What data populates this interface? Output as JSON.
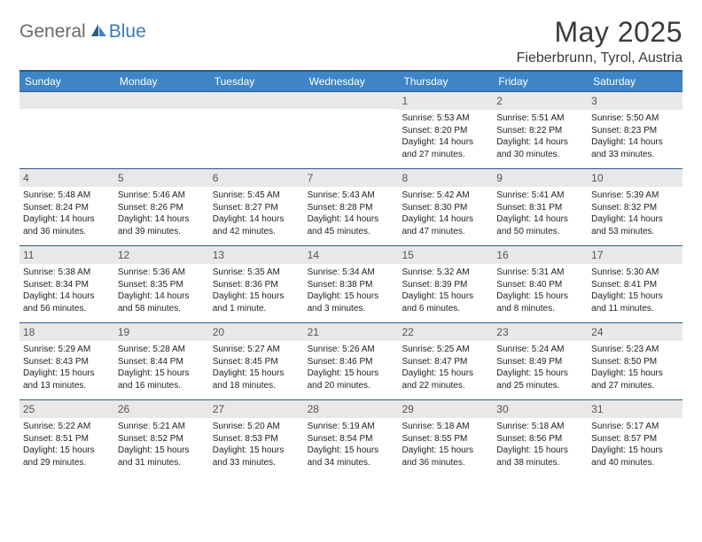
{
  "logo": {
    "textA": "General",
    "textB": "Blue"
  },
  "title": "May 2025",
  "location": "Fieberbrunn, Tyrol, Austria",
  "headerColor": "#3d85c6",
  "dow": [
    "Sunday",
    "Monday",
    "Tuesday",
    "Wednesday",
    "Thursday",
    "Friday",
    "Saturday"
  ],
  "weeks": [
    [
      null,
      null,
      null,
      null,
      {
        "n": "1",
        "sr": "Sunrise: 5:53 AM",
        "ss": "Sunset: 8:20 PM",
        "dl": "Daylight: 14 hours and 27 minutes."
      },
      {
        "n": "2",
        "sr": "Sunrise: 5:51 AM",
        "ss": "Sunset: 8:22 PM",
        "dl": "Daylight: 14 hours and 30 minutes."
      },
      {
        "n": "3",
        "sr": "Sunrise: 5:50 AM",
        "ss": "Sunset: 8:23 PM",
        "dl": "Daylight: 14 hours and 33 minutes."
      }
    ],
    [
      {
        "n": "4",
        "sr": "Sunrise: 5:48 AM",
        "ss": "Sunset: 8:24 PM",
        "dl": "Daylight: 14 hours and 36 minutes."
      },
      {
        "n": "5",
        "sr": "Sunrise: 5:46 AM",
        "ss": "Sunset: 8:26 PM",
        "dl": "Daylight: 14 hours and 39 minutes."
      },
      {
        "n": "6",
        "sr": "Sunrise: 5:45 AM",
        "ss": "Sunset: 8:27 PM",
        "dl": "Daylight: 14 hours and 42 minutes."
      },
      {
        "n": "7",
        "sr": "Sunrise: 5:43 AM",
        "ss": "Sunset: 8:28 PM",
        "dl": "Daylight: 14 hours and 45 minutes."
      },
      {
        "n": "8",
        "sr": "Sunrise: 5:42 AM",
        "ss": "Sunset: 8:30 PM",
        "dl": "Daylight: 14 hours and 47 minutes."
      },
      {
        "n": "9",
        "sr": "Sunrise: 5:41 AM",
        "ss": "Sunset: 8:31 PM",
        "dl": "Daylight: 14 hours and 50 minutes."
      },
      {
        "n": "10",
        "sr": "Sunrise: 5:39 AM",
        "ss": "Sunset: 8:32 PM",
        "dl": "Daylight: 14 hours and 53 minutes."
      }
    ],
    [
      {
        "n": "11",
        "sr": "Sunrise: 5:38 AM",
        "ss": "Sunset: 8:34 PM",
        "dl": "Daylight: 14 hours and 56 minutes."
      },
      {
        "n": "12",
        "sr": "Sunrise: 5:36 AM",
        "ss": "Sunset: 8:35 PM",
        "dl": "Daylight: 14 hours and 58 minutes."
      },
      {
        "n": "13",
        "sr": "Sunrise: 5:35 AM",
        "ss": "Sunset: 8:36 PM",
        "dl": "Daylight: 15 hours and 1 minute."
      },
      {
        "n": "14",
        "sr": "Sunrise: 5:34 AM",
        "ss": "Sunset: 8:38 PM",
        "dl": "Daylight: 15 hours and 3 minutes."
      },
      {
        "n": "15",
        "sr": "Sunrise: 5:32 AM",
        "ss": "Sunset: 8:39 PM",
        "dl": "Daylight: 15 hours and 6 minutes."
      },
      {
        "n": "16",
        "sr": "Sunrise: 5:31 AM",
        "ss": "Sunset: 8:40 PM",
        "dl": "Daylight: 15 hours and 8 minutes."
      },
      {
        "n": "17",
        "sr": "Sunrise: 5:30 AM",
        "ss": "Sunset: 8:41 PM",
        "dl": "Daylight: 15 hours and 11 minutes."
      }
    ],
    [
      {
        "n": "18",
        "sr": "Sunrise: 5:29 AM",
        "ss": "Sunset: 8:43 PM",
        "dl": "Daylight: 15 hours and 13 minutes."
      },
      {
        "n": "19",
        "sr": "Sunrise: 5:28 AM",
        "ss": "Sunset: 8:44 PM",
        "dl": "Daylight: 15 hours and 16 minutes."
      },
      {
        "n": "20",
        "sr": "Sunrise: 5:27 AM",
        "ss": "Sunset: 8:45 PM",
        "dl": "Daylight: 15 hours and 18 minutes."
      },
      {
        "n": "21",
        "sr": "Sunrise: 5:26 AM",
        "ss": "Sunset: 8:46 PM",
        "dl": "Daylight: 15 hours and 20 minutes."
      },
      {
        "n": "22",
        "sr": "Sunrise: 5:25 AM",
        "ss": "Sunset: 8:47 PM",
        "dl": "Daylight: 15 hours and 22 minutes."
      },
      {
        "n": "23",
        "sr": "Sunrise: 5:24 AM",
        "ss": "Sunset: 8:49 PM",
        "dl": "Daylight: 15 hours and 25 minutes."
      },
      {
        "n": "24",
        "sr": "Sunrise: 5:23 AM",
        "ss": "Sunset: 8:50 PM",
        "dl": "Daylight: 15 hours and 27 minutes."
      }
    ],
    [
      {
        "n": "25",
        "sr": "Sunrise: 5:22 AM",
        "ss": "Sunset: 8:51 PM",
        "dl": "Daylight: 15 hours and 29 minutes."
      },
      {
        "n": "26",
        "sr": "Sunrise: 5:21 AM",
        "ss": "Sunset: 8:52 PM",
        "dl": "Daylight: 15 hours and 31 minutes."
      },
      {
        "n": "27",
        "sr": "Sunrise: 5:20 AM",
        "ss": "Sunset: 8:53 PM",
        "dl": "Daylight: 15 hours and 33 minutes."
      },
      {
        "n": "28",
        "sr": "Sunrise: 5:19 AM",
        "ss": "Sunset: 8:54 PM",
        "dl": "Daylight: 15 hours and 34 minutes."
      },
      {
        "n": "29",
        "sr": "Sunrise: 5:18 AM",
        "ss": "Sunset: 8:55 PM",
        "dl": "Daylight: 15 hours and 36 minutes."
      },
      {
        "n": "30",
        "sr": "Sunrise: 5:18 AM",
        "ss": "Sunset: 8:56 PM",
        "dl": "Daylight: 15 hours and 38 minutes."
      },
      {
        "n": "31",
        "sr": "Sunrise: 5:17 AM",
        "ss": "Sunset: 8:57 PM",
        "dl": "Daylight: 15 hours and 40 minutes."
      }
    ]
  ]
}
